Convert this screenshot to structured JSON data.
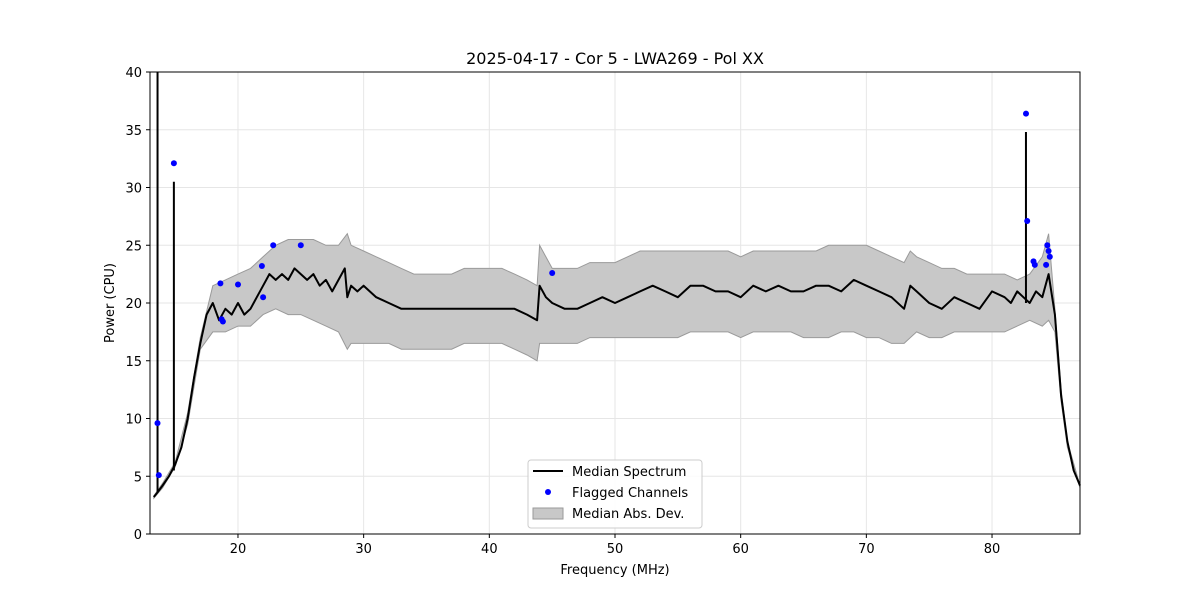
{
  "chart_data": {
    "type": "line",
    "title": "2025-04-17 - Cor 5 - LWA269 - Pol XX",
    "xlabel": "Frequency (MHz)",
    "ylabel": "Power (CPU)",
    "xlim": [
      13.0,
      87.0
    ],
    "ylim": [
      0,
      40
    ],
    "xticks": [
      20,
      30,
      40,
      50,
      60,
      70,
      80
    ],
    "yticks": [
      0,
      5,
      10,
      15,
      20,
      25,
      30,
      35,
      40
    ],
    "xtick_labels": [
      "20",
      "30",
      "40",
      "50",
      "60",
      "70",
      "80"
    ],
    "ytick_labels": [
      "0",
      "5",
      "10",
      "15",
      "20",
      "25",
      "30",
      "35",
      "40"
    ],
    "grid": true,
    "legend_position": "bottom-center",
    "legend": [
      "Median Spectrum",
      "Flagged Channels",
      "Median Abs. Dev."
    ],
    "colors": {
      "median": "#000000",
      "flagged": "#0000ff",
      "mad_fill": "#c8c8c8",
      "mad_edge": "#9a9a9a",
      "grid": "#e6e6e6"
    },
    "series": [
      {
        "name": "Median Spectrum",
        "x": [
          13.3,
          13.6,
          14.0,
          14.5,
          15.0,
          15.5,
          16.0,
          16.5,
          17.0,
          17.5,
          18.0,
          18.5,
          19.0,
          19.5,
          20.0,
          20.5,
          21.0,
          21.5,
          22.0,
          22.5,
          23.0,
          23.5,
          24.0,
          24.5,
          25.0,
          25.5,
          26.0,
          26.5,
          27.0,
          27.5,
          28.0,
          28.5,
          28.7,
          29.0,
          29.5,
          30.0,
          31.0,
          32.0,
          33.0,
          34.0,
          35.0,
          36.0,
          37.0,
          38.0,
          39.0,
          40.0,
          41.0,
          42.0,
          43.0,
          43.8,
          44.0,
          44.5,
          45.0,
          46.0,
          47.0,
          48.0,
          49.0,
          50.0,
          51.0,
          52.0,
          53.0,
          54.0,
          55.0,
          56.0,
          57.0,
          58.0,
          59.0,
          60.0,
          61.0,
          62.0,
          63.0,
          64.0,
          65.0,
          66.0,
          67.0,
          68.0,
          69.0,
          70.0,
          71.0,
          72.0,
          73.0,
          73.5,
          74.0,
          75.0,
          76.0,
          77.0,
          78.0,
          79.0,
          80.0,
          81.0,
          81.5,
          82.0,
          82.5,
          83.0,
          83.5,
          84.0,
          84.5,
          85.0,
          85.5,
          86.0,
          86.5,
          87.0
        ],
        "values": [
          3.2,
          3.6,
          4.2,
          5.0,
          6.0,
          7.5,
          10.0,
          13.5,
          16.5,
          19.0,
          20.0,
          18.5,
          19.5,
          19.0,
          20.0,
          19.0,
          19.5,
          20.5,
          21.5,
          22.5,
          22.0,
          22.5,
          22.0,
          23.0,
          22.5,
          22.0,
          22.5,
          21.5,
          22.0,
          21.0,
          22.0,
          23.0,
          20.5,
          21.5,
          21.0,
          21.5,
          20.5,
          20.0,
          19.5,
          19.5,
          19.5,
          19.5,
          19.5,
          19.5,
          19.5,
          19.5,
          19.5,
          19.5,
          19.0,
          18.5,
          21.5,
          20.5,
          20.0,
          19.5,
          19.5,
          20.0,
          20.5,
          20.0,
          20.5,
          21.0,
          21.5,
          21.0,
          20.5,
          21.5,
          21.5,
          21.0,
          21.0,
          20.5,
          21.5,
          21.0,
          21.5,
          21.0,
          21.0,
          21.5,
          21.5,
          21.0,
          22.0,
          21.5,
          21.0,
          20.5,
          19.5,
          21.5,
          21.0,
          20.0,
          19.5,
          20.5,
          20.0,
          19.5,
          21.0,
          20.5,
          20.0,
          21.0,
          20.5,
          20.0,
          21.0,
          20.5,
          22.5,
          19.0,
          12.0,
          8.0,
          5.5,
          4.2
        ]
      },
      {
        "name": "Median Abs. Dev.",
        "x": [
          13.3,
          14.0,
          15.0,
          16.0,
          17.0,
          18.0,
          19.0,
          20.0,
          21.0,
          22.0,
          23.0,
          24.0,
          25.0,
          26.0,
          27.0,
          28.0,
          28.7,
          29.0,
          30.0,
          31.0,
          32.0,
          33.0,
          34.0,
          35.0,
          36.0,
          37.0,
          38.0,
          39.0,
          40.0,
          41.0,
          42.0,
          43.0,
          43.8,
          44.0,
          45.0,
          46.0,
          47.0,
          48.0,
          49.0,
          50.0,
          51.0,
          52.0,
          53.0,
          54.0,
          55.0,
          56.0,
          57.0,
          58.0,
          59.0,
          60.0,
          61.0,
          62.0,
          63.0,
          64.0,
          65.0,
          66.0,
          67.0,
          68.0,
          69.0,
          70.0,
          71.0,
          72.0,
          73.0,
          73.5,
          74.0,
          75.0,
          76.0,
          77.0,
          78.0,
          79.0,
          80.0,
          81.0,
          82.0,
          83.0,
          84.0,
          84.5,
          85.0,
          85.5,
          86.0,
          87.0
        ],
        "upper": [
          3.3,
          4.4,
          6.2,
          10.5,
          17.0,
          21.5,
          22.0,
          22.5,
          23.0,
          24.0,
          25.0,
          25.5,
          25.5,
          25.5,
          25.0,
          25.0,
          26.0,
          25.0,
          24.5,
          24.0,
          23.5,
          23.0,
          22.5,
          22.5,
          22.5,
          22.5,
          23.0,
          23.0,
          23.0,
          23.0,
          22.5,
          22.0,
          21.5,
          25.0,
          23.0,
          23.0,
          23.0,
          23.5,
          23.5,
          23.5,
          24.0,
          24.5,
          24.5,
          24.5,
          24.5,
          24.5,
          24.5,
          24.5,
          24.5,
          24.0,
          24.5,
          24.5,
          24.5,
          24.5,
          24.5,
          24.5,
          25.0,
          25.0,
          25.0,
          25.0,
          24.5,
          24.0,
          23.5,
          24.5,
          24.0,
          23.5,
          23.0,
          23.0,
          22.5,
          22.5,
          22.5,
          22.5,
          22.0,
          22.5,
          24.0,
          26.0,
          19.5,
          12.5,
          8.0,
          4.2
        ],
        "lower": [
          3.1,
          4.0,
          5.8,
          9.5,
          16.0,
          17.5,
          17.5,
          18.0,
          18.0,
          19.0,
          19.5,
          19.0,
          19.0,
          18.5,
          18.0,
          17.5,
          16.0,
          16.5,
          16.5,
          16.5,
          16.5,
          16.0,
          16.0,
          16.0,
          16.0,
          16.0,
          16.5,
          16.5,
          16.5,
          16.5,
          16.0,
          15.5,
          15.0,
          16.5,
          16.5,
          16.5,
          16.5,
          17.0,
          17.0,
          17.0,
          17.0,
          17.0,
          17.0,
          17.0,
          17.0,
          17.5,
          17.5,
          17.5,
          17.5,
          17.0,
          17.5,
          17.5,
          17.5,
          17.5,
          17.0,
          17.0,
          17.0,
          17.5,
          17.5,
          17.0,
          17.0,
          16.5,
          16.5,
          17.0,
          17.5,
          17.0,
          17.0,
          17.5,
          17.5,
          17.5,
          17.5,
          17.5,
          18.0,
          18.5,
          18.0,
          18.5,
          17.5,
          11.5,
          7.5,
          4.0
        ]
      },
      {
        "name": "Flagged Channels",
        "x": [
          13.6,
          13.7,
          14.9,
          18.6,
          18.7,
          18.8,
          20.0,
          21.9,
          22.0,
          22.8,
          25.0,
          45.0,
          82.7,
          82.8,
          83.3,
          83.4,
          84.3,
          84.4,
          84.5,
          84.6
        ],
        "values": [
          9.6,
          5.1,
          32.1,
          21.7,
          18.6,
          18.4,
          21.6,
          23.2,
          20.5,
          25.0,
          25.0,
          22.6,
          36.4,
          27.1,
          23.6,
          23.3,
          23.3,
          25.0,
          24.5,
          24.0
        ]
      }
    ],
    "spikes": [
      {
        "x": 13.6,
        "from": 3.6,
        "to": 40.0
      },
      {
        "x": 14.9,
        "from": 5.5,
        "to": 30.5
      },
      {
        "x": 82.7,
        "from": 20.0,
        "to": 34.8
      }
    ]
  }
}
